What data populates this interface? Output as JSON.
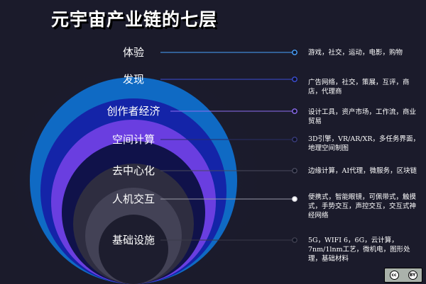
{
  "title": "元宇宙产业链的七层",
  "layers": [
    {
      "label": "体验",
      "color": "#0f6ac4",
      "description": "游戏，社交，运动，电影，购物"
    },
    {
      "label": "发现",
      "color": "#1424a8",
      "description": "广告网络，社交，策展，互评，商店，代理商"
    },
    {
      "label": "创作者经济",
      "color": "#6a3ee0",
      "description": "设计工具，资产市场，工作流，商业贸易"
    },
    {
      "label": "空间计算",
      "color": "#10124a",
      "description": "3D引擎，VR/AR/XR，多任务界面，地理空间制图"
    },
    {
      "label": "去中心化",
      "color": "#2e2d40",
      "description": "边缘计算，AI代理，微服务，区块链"
    },
    {
      "label": "人机交互",
      "color": "#434256",
      "description": "便携式，智能眼镜，可佩带式，触摸式，手势交互，声控交互，交互式神经网络"
    },
    {
      "label": "基础设施",
      "color": "#1d1d2e",
      "description": "5G，WIFI 6，6G，云计算，7nm/1lnm工艺，微机电，图形处理，基础材料"
    }
  ],
  "license_badge": {
    "cc": "cc",
    "by": "BY"
  }
}
